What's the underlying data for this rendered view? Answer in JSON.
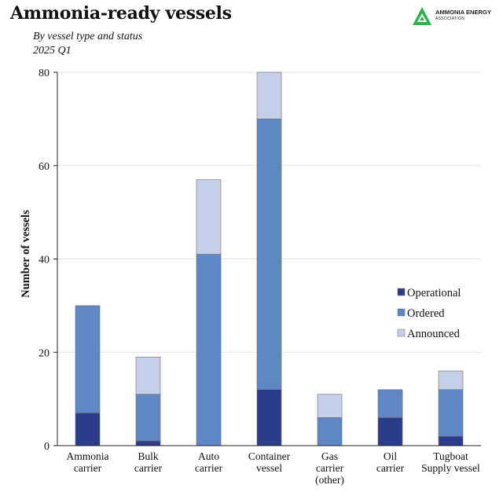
{
  "header": {
    "title": "Ammonia-ready vessels",
    "subtitle_line1": "By vessel type and status",
    "subtitle_line2": "2025 Q1"
  },
  "logo": {
    "line1": "AMMONIA ENERGY",
    "line2": "ASSOCIATION",
    "color": "#2db34a"
  },
  "chart_data": {
    "type": "bar",
    "stacked": true,
    "categories": [
      [
        "Ammonia",
        "carrier"
      ],
      [
        "Bulk",
        "carrier"
      ],
      [
        "Auto",
        "carrier"
      ],
      [
        "Container",
        "vessel"
      ],
      [
        "Gas",
        "carrier",
        "(other)"
      ],
      [
        "Oil",
        "carrier"
      ],
      [
        "Tugboat",
        "Supply vessel"
      ]
    ],
    "series": [
      {
        "name": "Operational",
        "color": "#2b3d8a",
        "values": [
          7,
          1,
          0,
          12,
          0,
          6,
          2
        ]
      },
      {
        "name": "Ordered",
        "color": "#5f86c5",
        "values": [
          23,
          10,
          41,
          58,
          6,
          6,
          10
        ]
      },
      {
        "name": "Announced",
        "color": "#c5cfe9",
        "values": [
          0,
          8,
          16,
          10,
          5,
          0,
          4
        ]
      }
    ],
    "ylabel": "Number of vessels",
    "xlabel": "",
    "ylim": [
      0,
      80
    ],
    "yticks": [
      0,
      20,
      40,
      60,
      80
    ],
    "grid": true,
    "legend_position": "right"
  }
}
